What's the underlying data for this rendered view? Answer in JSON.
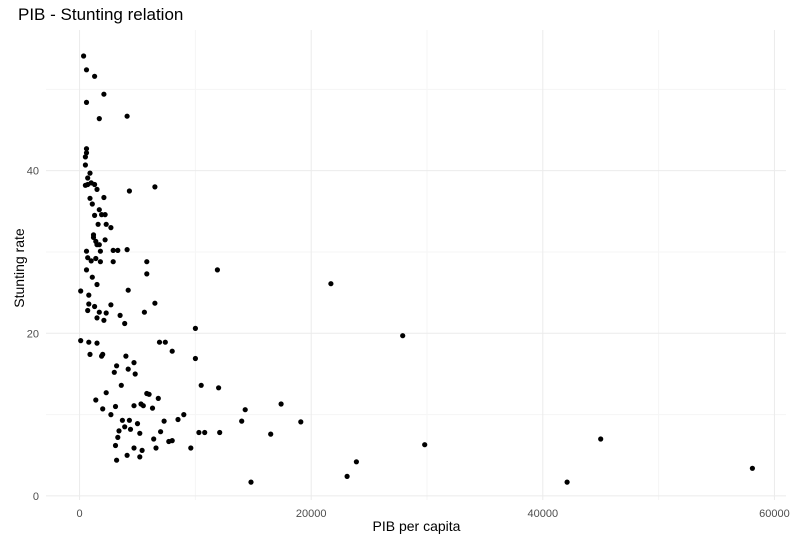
{
  "chart_data": {
    "type": "scatter",
    "title": "PIB - Stunting relation",
    "xlabel": "PIB per capita",
    "ylabel": "Stunting rate",
    "xlim": [
      -2900,
      61000
    ],
    "ylim": [
      -0.5,
      57.3
    ],
    "x_ticks": [
      0,
      20000,
      40000,
      60000
    ],
    "x_tick_labels": [
      "0",
      "20000",
      "40000",
      "60000"
    ],
    "y_ticks": [
      0,
      20,
      40
    ],
    "y_tick_labels": [
      "0",
      "20",
      "40"
    ],
    "grid": true,
    "legend": false,
    "colors": {
      "point": "#000000",
      "grid_major": "#ebebeb",
      "grid_minor": "#f5f5f5"
    },
    "points": [
      [
        350,
        54.1
      ],
      [
        600,
        52.4
      ],
      [
        1300,
        51.6
      ],
      [
        2100,
        49.4
      ],
      [
        600,
        48.4
      ],
      [
        4100,
        46.7
      ],
      [
        1700,
        46.4
      ],
      [
        600,
        42.7
      ],
      [
        600,
        42.2
      ],
      [
        500,
        41.7
      ],
      [
        500,
        40.7
      ],
      [
        900,
        39.7
      ],
      [
        700,
        39.1
      ],
      [
        700,
        38.3
      ],
      [
        500,
        38.2
      ],
      [
        1000,
        38.5
      ],
      [
        1300,
        38.3
      ],
      [
        1500,
        37.7
      ],
      [
        6500,
        38.0
      ],
      [
        4300,
        37.5
      ],
      [
        2100,
        36.7
      ],
      [
        900,
        36.6
      ],
      [
        1100,
        35.9
      ],
      [
        1700,
        35.2
      ],
      [
        1300,
        34.5
      ],
      [
        1900,
        34.6
      ],
      [
        2200,
        34.6
      ],
      [
        1600,
        33.4
      ],
      [
        2300,
        33.4
      ],
      [
        2700,
        33.0
      ],
      [
        1200,
        32.1
      ],
      [
        1200,
        31.8
      ],
      [
        1400,
        31.3
      ],
      [
        1500,
        30.9
      ],
      [
        2200,
        31.5
      ],
      [
        1700,
        30.9
      ],
      [
        1800,
        30.1
      ],
      [
        3300,
        30.2
      ],
      [
        2900,
        30.2
      ],
      [
        4100,
        30.3
      ],
      [
        600,
        30.1
      ],
      [
        700,
        29.3
      ],
      [
        1400,
        29.2
      ],
      [
        1000,
        28.9
      ],
      [
        1800,
        28.8
      ],
      [
        2900,
        28.8
      ],
      [
        5800,
        28.8
      ],
      [
        5800,
        27.3
      ],
      [
        11900,
        27.8
      ],
      [
        600,
        27.8
      ],
      [
        1100,
        26.9
      ],
      [
        1500,
        26.0
      ],
      [
        21700,
        26.1
      ],
      [
        100,
        25.2
      ],
      [
        800,
        24.7
      ],
      [
        4200,
        25.3
      ],
      [
        6500,
        23.7
      ],
      [
        800,
        23.6
      ],
      [
        1300,
        23.3
      ],
      [
        2700,
        23.5
      ],
      [
        700,
        22.8
      ],
      [
        1700,
        22.6
      ],
      [
        2300,
        22.5
      ],
      [
        5600,
        22.6
      ],
      [
        3500,
        22.2
      ],
      [
        1500,
        21.9
      ],
      [
        2100,
        21.6
      ],
      [
        3900,
        21.2
      ],
      [
        10000,
        20.6
      ],
      [
        27900,
        19.7
      ],
      [
        100,
        19.1
      ],
      [
        800,
        18.9
      ],
      [
        1500,
        18.8
      ],
      [
        6900,
        18.9
      ],
      [
        7400,
        18.9
      ],
      [
        900,
        17.4
      ],
      [
        1900,
        17.2
      ],
      [
        2000,
        17.4
      ],
      [
        4000,
        17.2
      ],
      [
        8000,
        17.8
      ],
      [
        10000,
        16.9
      ],
      [
        4700,
        16.4
      ],
      [
        3200,
        16.0
      ],
      [
        4200,
        15.6
      ],
      [
        3000,
        15.2
      ],
      [
        4800,
        15.0
      ],
      [
        3600,
        13.6
      ],
      [
        10500,
        13.6
      ],
      [
        12000,
        13.3
      ],
      [
        2300,
        12.7
      ],
      [
        5800,
        12.6
      ],
      [
        6000,
        12.5
      ],
      [
        1400,
        11.8
      ],
      [
        6800,
        12.0
      ],
      [
        17400,
        11.3
      ],
      [
        5500,
        11.1
      ],
      [
        5300,
        11.3
      ],
      [
        3100,
        11.0
      ],
      [
        4700,
        11.1
      ],
      [
        2000,
        10.7
      ],
      [
        6300,
        10.8
      ],
      [
        14300,
        10.6
      ],
      [
        2700,
        10.0
      ],
      [
        9000,
        10.0
      ],
      [
        8500,
        9.4
      ],
      [
        3700,
        9.3
      ],
      [
        4300,
        9.3
      ],
      [
        7300,
        9.2
      ],
      [
        14000,
        9.2
      ],
      [
        19100,
        9.1
      ],
      [
        5000,
        8.9
      ],
      [
        3900,
        8.5
      ],
      [
        4400,
        8.2
      ],
      [
        3400,
        8.0
      ],
      [
        5200,
        7.7
      ],
      [
        7000,
        7.9
      ],
      [
        10300,
        7.8
      ],
      [
        10800,
        7.8
      ],
      [
        12100,
        7.8
      ],
      [
        16500,
        7.6
      ],
      [
        3300,
        7.2
      ],
      [
        6400,
        7.0
      ],
      [
        8000,
        6.8
      ],
      [
        7700,
        6.7
      ],
      [
        3100,
        6.2
      ],
      [
        4700,
        5.9
      ],
      [
        6600,
        5.9
      ],
      [
        9600,
        5.9
      ],
      [
        29800,
        6.3
      ],
      [
        45000,
        7.0
      ],
      [
        5400,
        5.6
      ],
      [
        4100,
        5.0
      ],
      [
        5200,
        4.8
      ],
      [
        3200,
        4.4
      ],
      [
        23900,
        4.2
      ],
      [
        23100,
        2.4
      ],
      [
        58100,
        3.4
      ],
      [
        14800,
        1.7
      ],
      [
        42100,
        1.7
      ]
    ]
  }
}
